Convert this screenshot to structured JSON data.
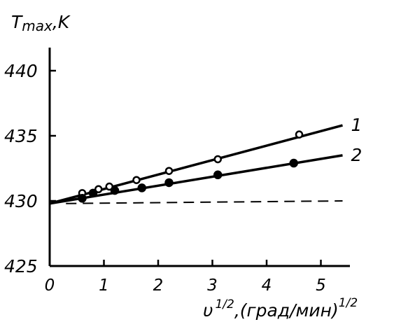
{
  "chart_data": {
    "type": "scatter",
    "ylabel": "T max ,K",
    "xlabel": "υ 1/2 ,(град/мин) 1/2",
    "ylabel_parts": {
      "main": "T",
      "sub": "max",
      "suffix": ",K"
    },
    "xlabel_parts": {
      "main": "υ",
      "sup1": "1/2",
      "mid": ",(град/мин)",
      "sup2": "1/2"
    },
    "xlim": [
      0,
      5.5
    ],
    "ylim": [
      425,
      441
    ],
    "x_ticks": [
      "0",
      "1",
      "2",
      "3",
      "4",
      "5"
    ],
    "y_ticks": [
      "425",
      "430",
      "435",
      "440"
    ],
    "grid": false,
    "series": [
      {
        "name": "1",
        "marker": "open-circle",
        "x": [
          0.6,
          0.9,
          1.1,
          1.6,
          2.2,
          3.1,
          4.6
        ],
        "y": [
          430.6,
          430.9,
          431.1,
          431.6,
          432.3,
          433.2,
          435.1
        ],
        "fit": {
          "x": [
            0,
            5.4
          ],
          "y": [
            429.8,
            435.8
          ]
        }
      },
      {
        "name": "2",
        "marker": "filled-circle",
        "x": [
          0.6,
          0.8,
          1.2,
          1.7,
          2.2,
          3.1,
          4.5
        ],
        "y": [
          430.2,
          430.6,
          430.8,
          431.0,
          431.4,
          432.0,
          432.9
        ],
        "fit": {
          "x": [
            0,
            5.4
          ],
          "y": [
            429.8,
            433.5
          ]
        }
      }
    ],
    "reference_line": {
      "style": "dashed",
      "x": [
        0.3,
        5.4
      ],
      "y": [
        429.8,
        430.0
      ]
    }
  }
}
